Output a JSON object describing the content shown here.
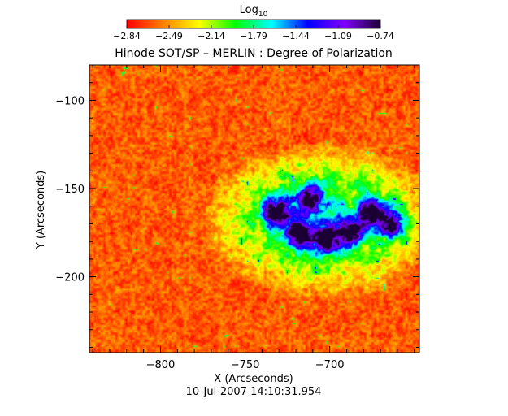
{
  "chart_data": {
    "type": "heatmap",
    "title": "Hinode SOT/SP – MERLIN : Degree of Polarization",
    "xlabel": "X (Arcseconds)",
    "ylabel": "Y (Arcseconds)",
    "timestamp": "10-Jul-2007 14:10:31.954",
    "xlim": [
      -842,
      -647
    ],
    "ylim": [
      -243,
      -80
    ],
    "xticks": [
      -800,
      -750,
      -700
    ],
    "xtick_labels": [
      "−800",
      "−750",
      "−700"
    ],
    "yticks": [
      -100,
      -150,
      -200
    ],
    "ytick_labels": [
      "−100",
      "−150",
      "−200"
    ],
    "colorbar": {
      "label": "Log",
      "label_sub": "10",
      "range": [
        -2.84,
        -0.74
      ],
      "tick_values": [
        -2.84,
        -2.49,
        -2.14,
        -1.79,
        -1.44,
        -1.09,
        -0.74
      ],
      "tick_labels": [
        "−2.84",
        "−2.49",
        "−2.14",
        "−1.79",
        "−1.44",
        "−1.09",
        "−0.74"
      ],
      "colormap": [
        "#ff0000",
        "#ff7f00",
        "#ffff00",
        "#00ff00",
        "#00ffff",
        "#0000ff",
        "#7f00ff",
        "#1a0033"
      ]
    },
    "features": [
      {
        "x": -732,
        "y": -163,
        "peak": -0.8
      },
      {
        "x": -718,
        "y": -175,
        "peak": -0.95
      },
      {
        "x": -702,
        "y": -178,
        "peak": -0.9
      },
      {
        "x": -712,
        "y": -155,
        "peak": -1.0
      },
      {
        "x": -675,
        "y": -163,
        "peak": -0.95
      },
      {
        "x": -663,
        "y": -170,
        "peak": -1.1
      },
      {
        "x": -688,
        "y": -174,
        "peak": -1.05
      }
    ]
  }
}
